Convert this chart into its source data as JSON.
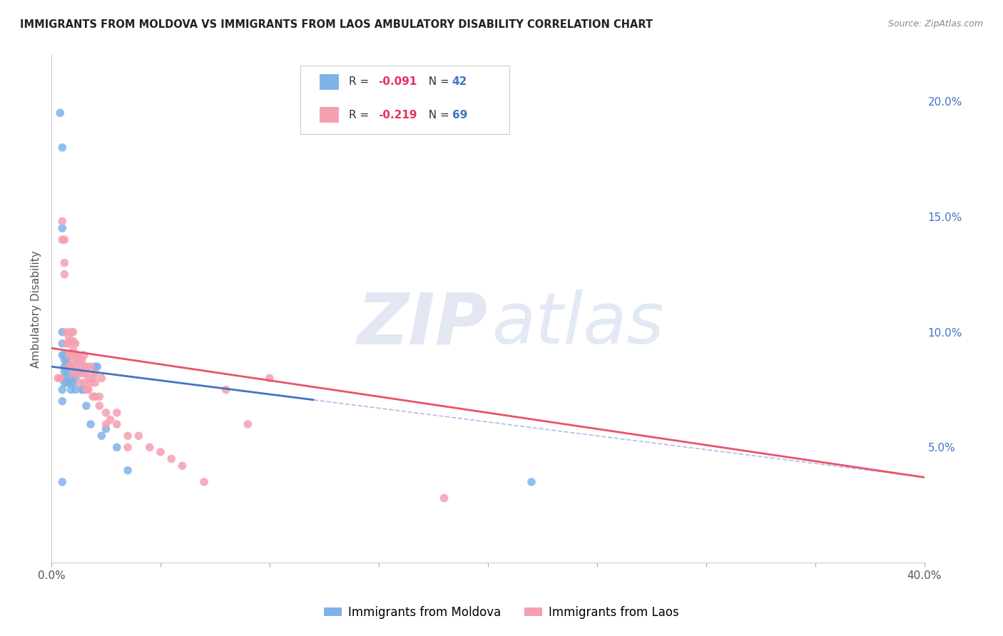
{
  "title": "IMMIGRANTS FROM MOLDOVA VS IMMIGRANTS FROM LAOS AMBULATORY DISABILITY CORRELATION CHART",
  "source": "Source: ZipAtlas.com",
  "ylabel": "Ambulatory Disability",
  "xlim": [
    0.0,
    0.4
  ],
  "ylim": [
    0.0,
    0.22
  ],
  "xticks": [
    0.0,
    0.05,
    0.1,
    0.15,
    0.2,
    0.25,
    0.3,
    0.35,
    0.4
  ],
  "xtick_labels": [
    "0.0%",
    "",
    "",
    "",
    "",
    "",
    "",
    "",
    "40.0%"
  ],
  "yticks_right": [
    0.05,
    0.1,
    0.15,
    0.2
  ],
  "ytick_labels_right": [
    "5.0%",
    "10.0%",
    "15.0%",
    "20.0%"
  ],
  "color_moldova": "#7FB3E8",
  "color_laos": "#F4A0B0",
  "color_line_moldova": "#4472C4",
  "color_line_laos": "#E8546A",
  "moldova_x": [
    0.004,
    0.005,
    0.005,
    0.005,
    0.005,
    0.005,
    0.005,
    0.005,
    0.006,
    0.006,
    0.006,
    0.006,
    0.006,
    0.006,
    0.007,
    0.007,
    0.007,
    0.007,
    0.008,
    0.008,
    0.008,
    0.009,
    0.009,
    0.009,
    0.01,
    0.01,
    0.011,
    0.011,
    0.012,
    0.013,
    0.014,
    0.015,
    0.016,
    0.018,
    0.02,
    0.021,
    0.023,
    0.025,
    0.03,
    0.035,
    0.005,
    0.22
  ],
  "moldova_y": [
    0.195,
    0.18,
    0.145,
    0.1,
    0.095,
    0.09,
    0.075,
    0.07,
    0.09,
    0.088,
    0.085,
    0.083,
    0.08,
    0.078,
    0.088,
    0.086,
    0.082,
    0.078,
    0.085,
    0.083,
    0.078,
    0.08,
    0.078,
    0.075,
    0.082,
    0.078,
    0.08,
    0.075,
    0.083,
    0.083,
    0.075,
    0.075,
    0.068,
    0.06,
    0.085,
    0.085,
    0.055,
    0.058,
    0.05,
    0.04,
    0.035,
    0.035
  ],
  "laos_x": [
    0.004,
    0.005,
    0.005,
    0.006,
    0.006,
    0.006,
    0.007,
    0.007,
    0.008,
    0.008,
    0.008,
    0.008,
    0.009,
    0.009,
    0.009,
    0.009,
    0.01,
    0.01,
    0.01,
    0.01,
    0.01,
    0.01,
    0.011,
    0.011,
    0.011,
    0.012,
    0.012,
    0.012,
    0.013,
    0.013,
    0.013,
    0.014,
    0.014,
    0.015,
    0.015,
    0.015,
    0.016,
    0.016,
    0.016,
    0.017,
    0.017,
    0.018,
    0.018,
    0.019,
    0.019,
    0.02,
    0.02,
    0.02,
    0.022,
    0.022,
    0.023,
    0.025,
    0.025,
    0.027,
    0.03,
    0.03,
    0.035,
    0.035,
    0.04,
    0.045,
    0.05,
    0.055,
    0.06,
    0.07,
    0.08,
    0.09,
    0.1,
    0.18,
    0.003
  ],
  "laos_y": [
    0.08,
    0.148,
    0.14,
    0.14,
    0.13,
    0.125,
    0.1,
    0.095,
    0.098,
    0.095,
    0.09,
    0.085,
    0.1,
    0.096,
    0.09,
    0.085,
    0.1,
    0.096,
    0.092,
    0.09,
    0.088,
    0.082,
    0.095,
    0.09,
    0.085,
    0.09,
    0.088,
    0.082,
    0.088,
    0.085,
    0.078,
    0.088,
    0.082,
    0.09,
    0.085,
    0.078,
    0.085,
    0.082,
    0.075,
    0.08,
    0.075,
    0.085,
    0.078,
    0.08,
    0.072,
    0.082,
    0.078,
    0.072,
    0.072,
    0.068,
    0.08,
    0.065,
    0.06,
    0.062,
    0.065,
    0.06,
    0.055,
    0.05,
    0.055,
    0.05,
    0.048,
    0.045,
    0.042,
    0.035,
    0.075,
    0.06,
    0.08,
    0.028,
    0.08
  ],
  "background_color": "#FFFFFF",
  "grid_color": "#CCCCCC"
}
